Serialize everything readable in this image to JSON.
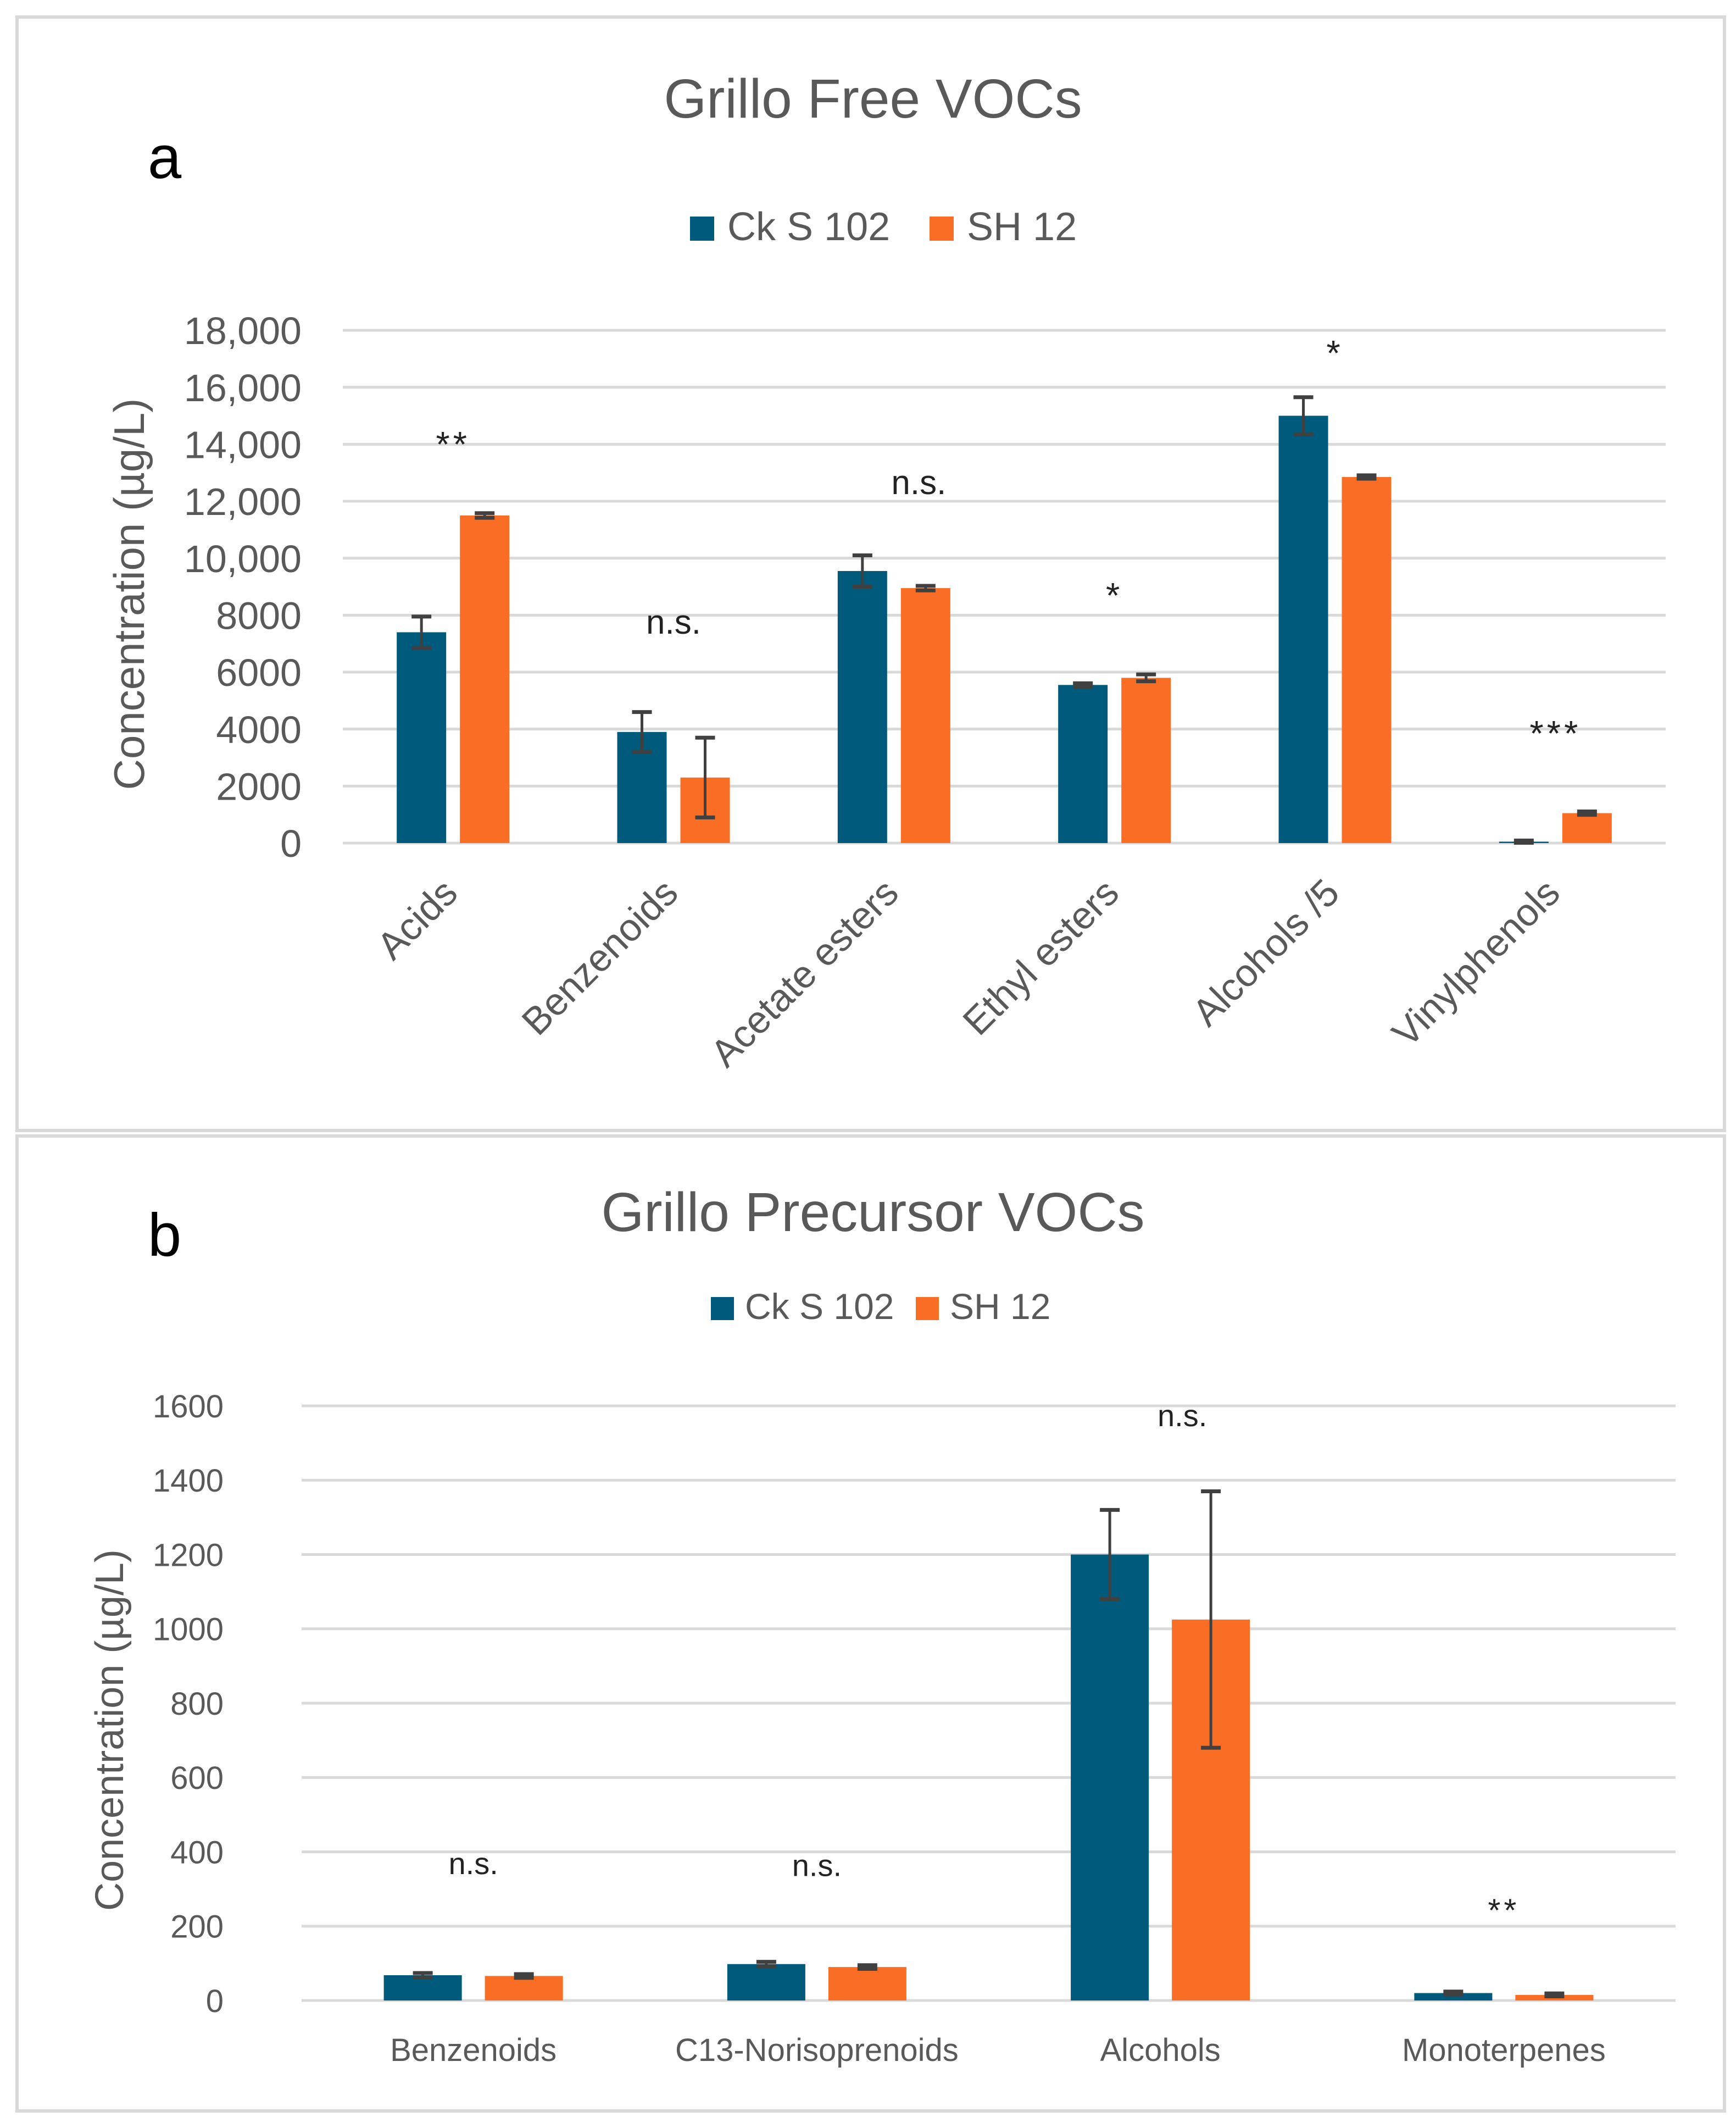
{
  "colors": {
    "ck": "#005a7c",
    "sh": "#f96d24",
    "grid": "#d9d9d9",
    "text": "#595959",
    "err": "#404040"
  },
  "chart_data": [
    {
      "type": "bar",
      "panel_label": "a",
      "title": "Grillo Free VOCs",
      "xlabel": "",
      "ylabel": "Concentration (µg/L)",
      "ylim": [
        0,
        18000
      ],
      "yticks": [
        0,
        2000,
        4000,
        6000,
        8000,
        10000,
        12000,
        14000,
        16000,
        18000
      ],
      "ytick_labels": [
        "0",
        "2000",
        "4000",
        "6000",
        "8000",
        "10,000",
        "12,000",
        "14,000",
        "16,000",
        "18,000"
      ],
      "categories": [
        "Acids",
        "Benzenoids",
        "Acetate esters",
        "Ethyl esters",
        "Alcohols /5",
        "Vinylphenols"
      ],
      "series": [
        {
          "name": "Ck S 102",
          "values": [
            7400,
            3900,
            9550,
            5550,
            15000,
            50
          ],
          "errors": [
            550,
            700,
            550,
            60,
            650,
            40
          ]
        },
        {
          "name": "SH 12",
          "values": [
            11500,
            2300,
            8950,
            5800,
            12850,
            1050
          ],
          "errors": [
            80,
            1400,
            80,
            120,
            60,
            60
          ]
        }
      ],
      "annotations": [
        "**",
        "n.s.",
        "n.s.",
        "*",
        "*",
        "***"
      ],
      "annotation_values": [
        14100,
        7350,
        12250,
        8800,
        17300,
        3950
      ],
      "grid": true,
      "legend": "top-center"
    },
    {
      "type": "bar",
      "panel_label": "b",
      "title": "Grillo Precursor VOCs",
      "xlabel": "",
      "ylabel": "Concentration (µg/L)",
      "ylim": [
        0,
        1600
      ],
      "yticks": [
        0,
        200,
        400,
        600,
        800,
        1000,
        1200,
        1400,
        1600
      ],
      "ytick_labels": [
        "0",
        "200",
        "400",
        "600",
        "800",
        "1000",
        "1200",
        "1400",
        "1600"
      ],
      "categories": [
        "Benzenoids",
        "C13-Norisoprenoids",
        "Alcohols",
        "Monoterpenes"
      ],
      "series": [
        {
          "name": "Ck S 102",
          "values": [
            68,
            98,
            1200,
            20
          ],
          "errors": [
            6,
            6,
            120,
            4
          ]
        },
        {
          "name": "SH 12",
          "values": [
            66,
            90,
            1025,
            15
          ],
          "errors": [
            5,
            5,
            345,
            4
          ]
        }
      ],
      "annotations": [
        "n.s.",
        "n.s.",
        "n.s.",
        "**"
      ],
      "annotation_values": [
        340,
        335,
        1545,
        250
      ],
      "grid": true,
      "legend": "top-center"
    }
  ]
}
